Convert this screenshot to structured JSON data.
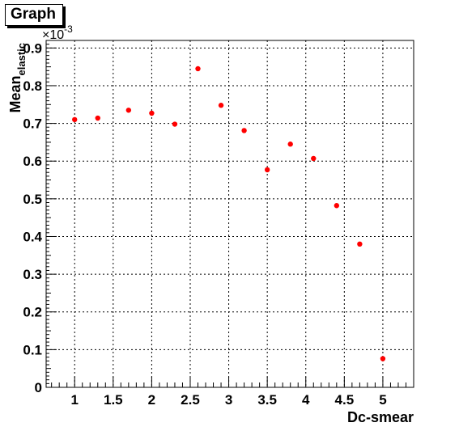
{
  "window": {
    "title": "Graph"
  },
  "chart_data": {
    "type": "scatter",
    "title": "Graph",
    "xlabel": "Dc-smear",
    "ylabel": "Mean",
    "ylabel_subscript": "elastic",
    "y_multiplier": "×10",
    "y_multiplier_exp": "-3",
    "xlim": [
      0.63,
      5.4
    ],
    "ylim": [
      0,
      0.92
    ],
    "x_ticks": [
      1,
      1.5,
      2,
      2.5,
      3,
      3.5,
      4,
      4.5,
      5
    ],
    "x_tick_labels": [
      "1",
      "1.5",
      "2",
      "2.5",
      "3",
      "3.5",
      "4",
      "4.5",
      "5"
    ],
    "y_ticks": [
      0,
      0.1,
      0.2,
      0.3,
      0.4,
      0.5,
      0.6,
      0.7,
      0.8,
      0.9
    ],
    "y_tick_labels": [
      "0",
      "0.1",
      "0.2",
      "0.3",
      "0.4",
      "0.5",
      "0.6",
      "0.7",
      "0.8",
      "0.9"
    ],
    "grid": true,
    "marker_color": "#ff0000",
    "series": [
      {
        "x": [
          1.0,
          1.3,
          1.7,
          2.0,
          2.3,
          2.6,
          2.9,
          3.2,
          3.5,
          3.8,
          4.1,
          4.4,
          4.7,
          5.0
        ],
        "y": [
          0.71,
          0.714,
          0.735,
          0.727,
          0.698,
          0.845,
          0.748,
          0.681,
          0.577,
          0.645,
          0.607,
          0.482,
          0.38,
          0.076
        ]
      }
    ]
  }
}
